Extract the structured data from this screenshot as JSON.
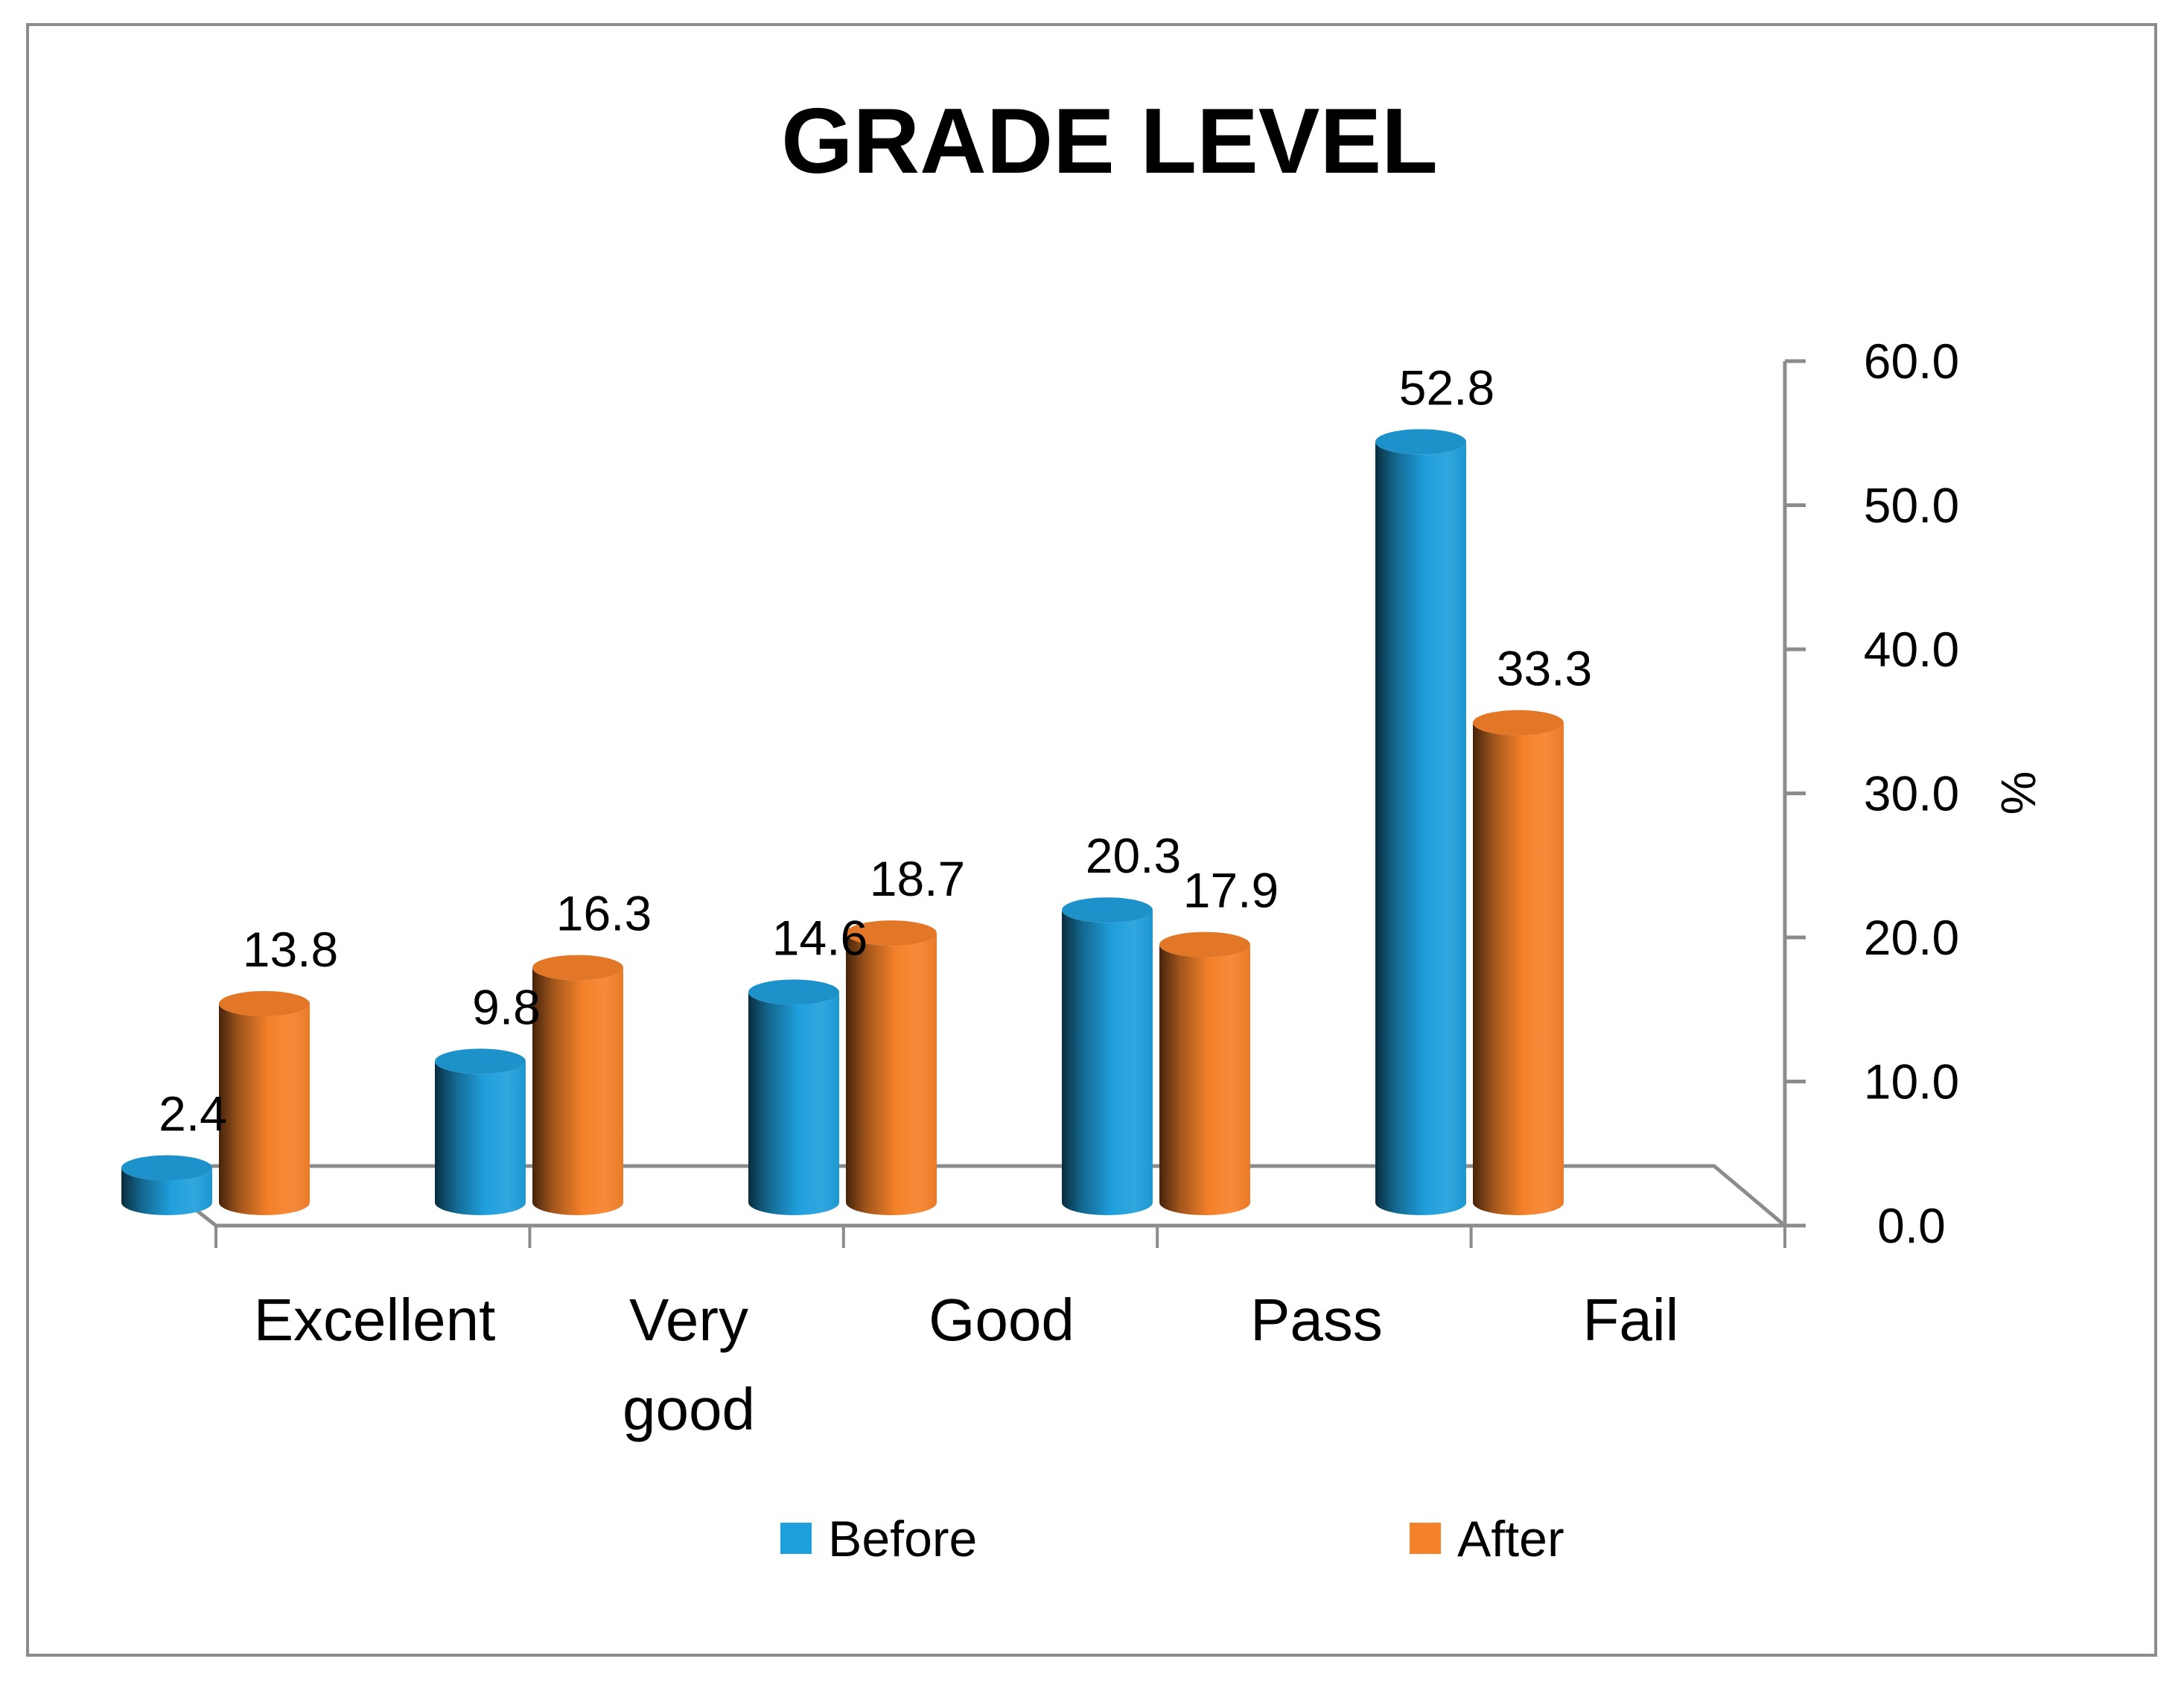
{
  "chart_data": {
    "type": "bar",
    "style": "3d-cylinder",
    "title": "GRADE LEVEL",
    "categories": [
      [
        "Excellent"
      ],
      [
        "Very",
        "good"
      ],
      [
        "Good"
      ],
      [
        "Pass"
      ],
      [
        "Fail"
      ]
    ],
    "series": [
      {
        "name": "Before",
        "color": "#1f9fdc",
        "values": [
          2.4,
          9.8,
          14.6,
          20.3,
          52.8
        ],
        "labels": [
          "2.4",
          "9.8",
          "14.6",
          "20.3",
          "52.8"
        ]
      },
      {
        "name": "After",
        "color": "#f5812a",
        "values": [
          13.8,
          16.3,
          18.7,
          17.9,
          33.3
        ],
        "labels": [
          "13.8",
          "16.3",
          "18.7",
          "17.9",
          "33.3"
        ]
      }
    ],
    "ylabel": "%",
    "y_axis_position": "right",
    "ylim": [
      0,
      60
    ],
    "yticks": [
      "0.0",
      "10.0",
      "20.0",
      "30.0",
      "40.0",
      "50.0",
      "60.0"
    ],
    "grid": false,
    "legend_position": "bottom"
  }
}
